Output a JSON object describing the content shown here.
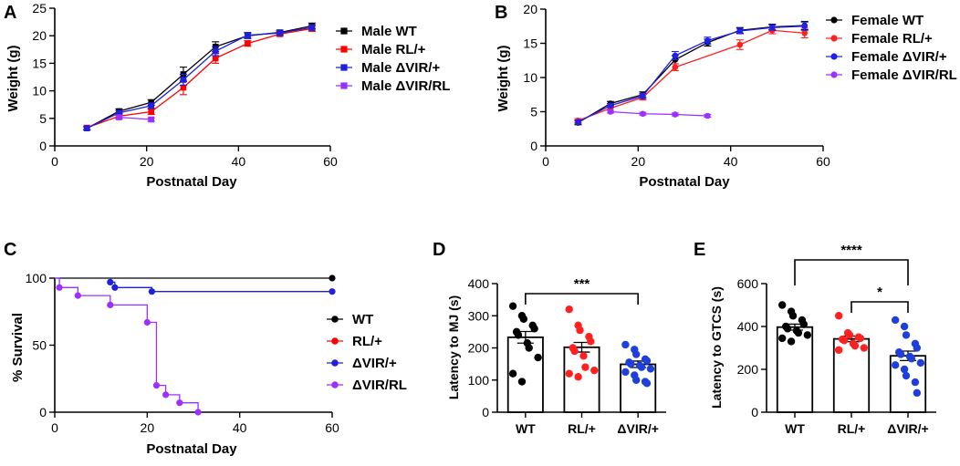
{
  "figure": {
    "panels": [
      "A",
      "B",
      "C",
      "D",
      "E"
    ]
  },
  "chart_data": [
    {
      "id": "A",
      "type": "line",
      "xlabel": "Postnatal Day",
      "ylabel": "Weight (g)",
      "xlim": [
        0,
        60
      ],
      "ylim": [
        0,
        25
      ],
      "xticks": [
        0,
        20,
        40,
        60
      ],
      "yticks": [
        0,
        5,
        10,
        15,
        20,
        25
      ],
      "legend_position": "top-right",
      "series": [
        {
          "name": "Male WT",
          "color": "#000000",
          "marker": "square",
          "x": [
            7,
            14,
            21,
            28,
            35,
            42,
            49,
            56
          ],
          "y": [
            3.2,
            6.3,
            7.9,
            13.0,
            18.0,
            20.0,
            20.6,
            21.8
          ],
          "err": [
            0.3,
            0.4,
            0.5,
            1.3,
            0.9,
            0.5,
            0.4,
            0.5
          ]
        },
        {
          "name": "Male RL/+",
          "color": "#ff0000",
          "marker": "square",
          "x": [
            7,
            14,
            21,
            28,
            35,
            42,
            49,
            56
          ],
          "y": [
            3.3,
            5.4,
            6.2,
            10.6,
            15.9,
            18.6,
            20.3,
            21.3
          ],
          "err": [
            0.3,
            0.4,
            0.5,
            1.3,
            0.9,
            0.5,
            0.4,
            0.5
          ]
        },
        {
          "name": "Male ΔVIR/+",
          "color": "#1f1fdd",
          "marker": "square",
          "x": [
            7,
            14,
            21,
            28,
            35,
            42,
            49,
            56
          ],
          "y": [
            3.2,
            6.0,
            7.3,
            12.0,
            17.2,
            20.1,
            20.5,
            21.5
          ],
          "err": [
            0.3,
            0.4,
            0.5,
            1.0,
            0.8,
            0.5,
            0.4,
            0.5
          ]
        },
        {
          "name": "Male ΔVIR/RL",
          "color": "#9b30ff",
          "marker": "square",
          "x": [
            14,
            21
          ],
          "y": [
            5.2,
            4.8
          ],
          "err": [
            0.3,
            0.3
          ]
        }
      ]
    },
    {
      "id": "B",
      "type": "line",
      "xlabel": "Postnatal Day",
      "ylabel": "Weight (g)",
      "xlim": [
        0,
        60
      ],
      "ylim": [
        0,
        20
      ],
      "xticks": [
        0,
        20,
        40,
        60
      ],
      "yticks": [
        0,
        5,
        10,
        15,
        20
      ],
      "legend_position": "top-right",
      "series": [
        {
          "name": "Female WT",
          "color": "#000000",
          "marker": "circle",
          "x": [
            7,
            14,
            21,
            28,
            35,
            42,
            49,
            56
          ],
          "y": [
            3.4,
            6.2,
            7.5,
            12.6,
            15.1,
            16.9,
            17.4,
            17.6
          ],
          "err": [
            0.3,
            0.3,
            0.4,
            0.6,
            0.5,
            0.4,
            0.4,
            0.6
          ]
        },
        {
          "name": "Female RL/+",
          "color": "#ff2020",
          "marker": "circle",
          "x": [
            7,
            14,
            21,
            28,
            42,
            49,
            56
          ],
          "y": [
            3.7,
            5.5,
            7.1,
            11.5,
            14.8,
            16.9,
            16.5
          ],
          "err": [
            0.3,
            0.3,
            0.4,
            0.5,
            0.7,
            0.5,
            0.7
          ]
        },
        {
          "name": "Female ΔVIR/+",
          "color": "#2020ee",
          "marker": "circle",
          "x": [
            7,
            14,
            21,
            28,
            35,
            42,
            49,
            56
          ],
          "y": [
            3.5,
            5.9,
            7.3,
            13.2,
            15.4,
            16.8,
            17.3,
            17.5
          ],
          "err": [
            0.3,
            0.3,
            0.4,
            0.6,
            0.5,
            0.4,
            0.4,
            0.6
          ]
        },
        {
          "name": "Female ΔVIR/RL",
          "color": "#9b30ff",
          "marker": "circle",
          "x": [
            14,
            21,
            28,
            35
          ],
          "y": [
            5.0,
            4.7,
            4.6,
            4.4
          ],
          "err": [
            0.2,
            0.2,
            0.2,
            0.2
          ]
        }
      ]
    },
    {
      "id": "C",
      "type": "line",
      "subtype": "survival",
      "xlabel": "Postnatal Day",
      "ylabel": "% Survival",
      "xlim": [
        0,
        60
      ],
      "ylim": [
        0,
        100
      ],
      "xticks": [
        0,
        20,
        40,
        60
      ],
      "yticks": [
        0,
        50,
        100
      ],
      "legend_position": "right",
      "series": [
        {
          "name": "WT",
          "color": "#000000",
          "steps": [
            [
              0,
              100
            ],
            [
              60,
              100
            ]
          ],
          "markers": [
            [
              60,
              100
            ]
          ]
        },
        {
          "name": "RL/+",
          "color": "#ff0000",
          "steps": [],
          "markers": []
        },
        {
          "name": "ΔVIR/+",
          "color": "#1f1fdd",
          "steps": [
            [
              12,
              97
            ],
            [
              13,
              93
            ],
            [
              21,
              90
            ],
            [
              60,
              90
            ]
          ],
          "markers": [
            [
              12,
              97
            ],
            [
              13,
              93
            ],
            [
              21,
              90
            ],
            [
              60,
              90
            ]
          ]
        },
        {
          "name": "ΔVIR/RL",
          "color": "#9b30ff",
          "steps": [
            [
              0,
              100
            ],
            [
              1,
              93
            ],
            [
              5,
              87
            ],
            [
              12,
              80
            ],
            [
              20,
              67
            ],
            [
              22,
              20
            ],
            [
              24,
              13
            ],
            [
              27,
              7
            ],
            [
              31,
              0
            ]
          ],
          "markers": [
            [
              1,
              93
            ],
            [
              5,
              87
            ],
            [
              12,
              80
            ],
            [
              20,
              67
            ],
            [
              22,
              20
            ],
            [
              24,
              13
            ],
            [
              27,
              7
            ],
            [
              31,
              0
            ]
          ]
        }
      ]
    },
    {
      "id": "D",
      "type": "bar",
      "ylabel": "Latency to MJ (s)",
      "categories": [
        "WT",
        "RL/+",
        "ΔVIR/+"
      ],
      "values": [
        233,
        202,
        149
      ],
      "errors": [
        18,
        15,
        10
      ],
      "colors": [
        "#000000",
        "#ff2020",
        "#1f3fdd"
      ],
      "ylim": [
        0,
        400
      ],
      "yticks": [
        0,
        100,
        200,
        300,
        400
      ],
      "points": [
        [
          330,
          300,
          290,
          270,
          260,
          250,
          240,
          215,
          200,
          170,
          120,
          95
        ],
        [
          320,
          270,
          255,
          235,
          220,
          200,
          190,
          175,
          140,
          130,
          120,
          110
        ],
        [
          210,
          195,
          180,
          165,
          160,
          155,
          150,
          145,
          140,
          135,
          125,
          115,
          100,
          95,
          90
        ]
      ],
      "significance": [
        {
          "from": "WT",
          "to": "ΔVIR/+",
          "label": "***"
        }
      ]
    },
    {
      "id": "E",
      "type": "bar",
      "ylabel": "Latency to  GTCS (s)",
      "categories": [
        "WT",
        "RL/+",
        "ΔVIR/+"
      ],
      "values": [
        397,
        342,
        263
      ],
      "errors": [
        14,
        13,
        22
      ],
      "colors": [
        "#000000",
        "#ff2020",
        "#1f3fdd"
      ],
      "ylim": [
        0,
        600
      ],
      "yticks": [
        0,
        200,
        400,
        600
      ],
      "points": [
        [
          500,
          470,
          450,
          430,
          410,
          400,
          390,
          380,
          370,
          360,
          345,
          330
        ],
        [
          450,
          370,
          360,
          350,
          345,
          340,
          335,
          320,
          310,
          300,
          290
        ],
        [
          430,
          400,
          360,
          320,
          300,
          280,
          270,
          260,
          250,
          230,
          220,
          200,
          170,
          140,
          90
        ]
      ],
      "significance": [
        {
          "from": "WT",
          "to": "ΔVIR/+",
          "label": "****"
        },
        {
          "from": "RL/+",
          "to": "ΔVIR/+",
          "label": "*"
        }
      ]
    }
  ]
}
